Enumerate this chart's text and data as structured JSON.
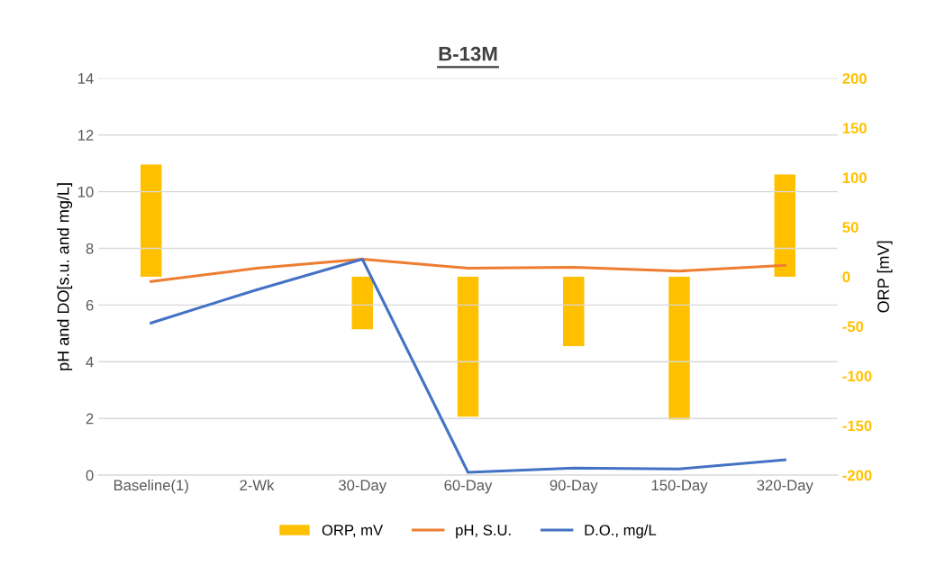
{
  "chart_data": {
    "type": "line",
    "title": "B-13M",
    "ylabel": "pH and DO[s.u. and mg/L]",
    "y2label": "ORP [mV]",
    "categories": [
      "Baseline(1)",
      "2-Wk",
      "30-Day",
      "60-Day",
      "90-Day",
      "150-Day",
      "320-Day"
    ],
    "series": [
      {
        "name": "ORP, mV",
        "type": "bar",
        "axis": "y2",
        "color": "#ffc000",
        "values": [
          113,
          null,
          -53,
          -141,
          -70,
          -144,
          103
        ]
      },
      {
        "name": "pH, S.U.",
        "color": "#ed7d31",
        "values": [
          6.83,
          7.3,
          7.62,
          7.3,
          7.33,
          7.2,
          7.4
        ]
      },
      {
        "name": "D.O., mg/L",
        "color": "#4472c4",
        "values": [
          5.37,
          6.54,
          7.62,
          0.1,
          0.25,
          0.22,
          0.54
        ]
      }
    ],
    "ylim": [
      0,
      14
    ],
    "yticks": [
      0,
      2,
      4,
      6,
      8,
      10,
      12,
      14
    ],
    "y2lim": [
      -200,
      200
    ],
    "y2ticks": [
      -200,
      -150,
      -100,
      -50,
      0,
      50,
      100,
      150,
      200
    ],
    "grid": "y",
    "legend": "bottom",
    "marker": "none",
    "line_style": "solid"
  }
}
